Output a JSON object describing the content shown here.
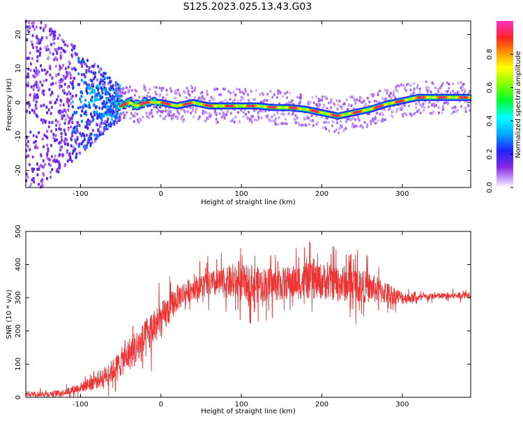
{
  "title": "S125.2023.025.13.43.G03",
  "colors": {
    "snr_line": "#ee3333",
    "axis": "#000000",
    "background": "#ffffff"
  },
  "chart_data": [
    {
      "type": "heatmap",
      "xlabel": "Height of straight line (km)",
      "ylabel": "Frequency (Hz)",
      "xlim": [
        -168,
        385
      ],
      "ylim": [
        -25,
        24
      ],
      "x_ticks": [
        -100,
        0,
        100,
        200,
        300
      ],
      "y_ticks": [
        -20,
        -10,
        0,
        10,
        20
      ],
      "grid": false,
      "colorbar": {
        "label": "Normalized spectral amplitude",
        "range": [
          0.0,
          1.0
        ],
        "ticks": [
          "0.0",
          "0.2",
          "0.4",
          "0.6",
          "0.8"
        ],
        "colormap": "rainbow (purple-blue-cyan-green-yellow-red-magenta)"
      },
      "ridge": {
        "description": "dominant frequency track vs height",
        "x": [
          -50,
          -40,
          -30,
          -20,
          0,
          20,
          40,
          60,
          80,
          100,
          120,
          140,
          160,
          180,
          200,
          220,
          240,
          260,
          280,
          300,
          320,
          340,
          360,
          385
        ],
        "y": [
          -1.0,
          0.0,
          -1.0,
          0.0,
          0.0,
          -1.0,
          0.0,
          -1.0,
          -1.0,
          -1.0,
          -1.0,
          -1.5,
          -1.5,
          -2.0,
          -3.0,
          -4.0,
          -3.0,
          -2.0,
          -0.5,
          0.5,
          1.5,
          1.5,
          1.5,
          1.5
        ]
      },
      "scatter_region": {
        "description": "broadband noise at low heights",
        "x_range": [
          -168,
          -50
        ],
        "y_range": [
          -25,
          24
        ]
      }
    },
    {
      "type": "line",
      "xlabel": "Height of straight line (km)",
      "ylabel": "SNR (10 * v/v)",
      "xlim": [
        -168,
        385
      ],
      "ylim": [
        0,
        500
      ],
      "x_ticks": [
        -100,
        0,
        100,
        200,
        300
      ],
      "y_ticks": [
        0,
        100,
        200,
        300,
        400,
        500
      ],
      "grid": false,
      "envelope": {
        "x": [
          -168,
          -140,
          -120,
          -100,
          -80,
          -60,
          -40,
          -20,
          -10,
          0,
          20,
          40,
          60,
          80,
          100,
          120,
          140,
          160,
          180,
          200,
          220,
          240,
          260,
          280,
          300,
          320,
          340,
          360,
          385
        ],
        "mean": [
          10,
          10,
          15,
          30,
          50,
          80,
          130,
          170,
          210,
          230,
          300,
          330,
          340,
          345,
          345,
          340,
          340,
          345,
          350,
          350,
          345,
          340,
          330,
          315,
          300,
          300,
          305,
          305,
          310
        ],
        "spread": [
          8,
          8,
          10,
          15,
          25,
          35,
          50,
          60,
          60,
          55,
          40,
          35,
          40,
          45,
          55,
          55,
          50,
          50,
          55,
          55,
          55,
          55,
          45,
          35,
          20,
          10,
          10,
          10,
          10
        ]
      }
    }
  ]
}
